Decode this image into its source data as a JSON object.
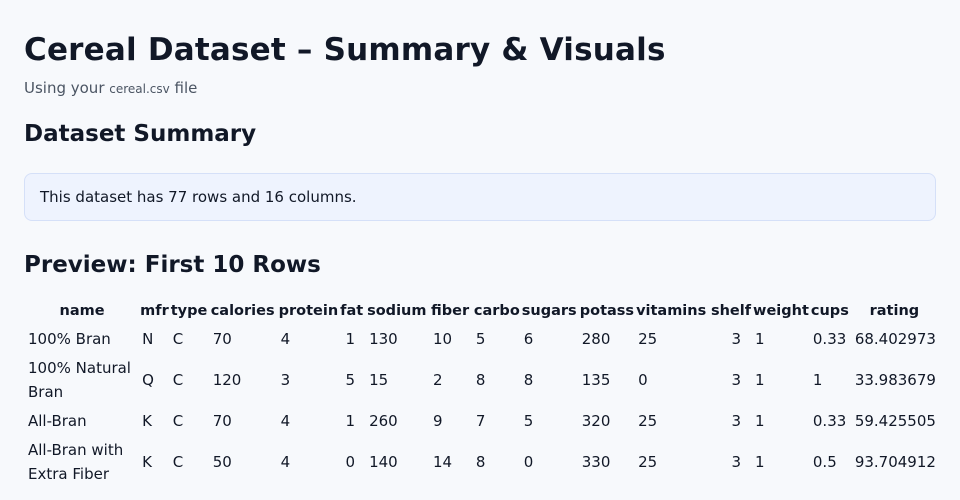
{
  "page": {
    "title": "Cereal Dataset – Summary & Visuals",
    "subtitle_prefix": "Using your ",
    "subtitle_file": "cereal.csv",
    "subtitle_suffix": " file"
  },
  "summary": {
    "heading": "Dataset Summary",
    "text": "This dataset has 77 rows and 16 columns."
  },
  "preview": {
    "heading": "Preview: First 10 Rows",
    "columns": [
      "name",
      "mfr",
      "type",
      "calories",
      "protein",
      "fat",
      "sodium",
      "fiber",
      "carbo",
      "sugars",
      "potass",
      "vitamins",
      "shelf",
      "weight",
      "cups",
      "rating"
    ],
    "rows": [
      [
        "100% Bran",
        "N",
        "C",
        "70",
        "4",
        "1",
        "130",
        "10",
        "5",
        "6",
        "280",
        "25",
        "3",
        "1",
        "0.33",
        "68.402973"
      ],
      [
        "100% Natural Bran",
        "Q",
        "C",
        "120",
        "3",
        "5",
        "15",
        "2",
        "8",
        "8",
        "135",
        "0",
        "3",
        "1",
        "1",
        "33.983679"
      ],
      [
        "All-Bran",
        "K",
        "C",
        "70",
        "4",
        "1",
        "260",
        "9",
        "7",
        "5",
        "320",
        "25",
        "3",
        "1",
        "0.33",
        "59.425505"
      ],
      [
        "All-Bran with Extra Fiber",
        "K",
        "C",
        "50",
        "4",
        "0",
        "140",
        "14",
        "8",
        "0",
        "330",
        "25",
        "3",
        "1",
        "0.5",
        "93.704912"
      ]
    ]
  }
}
